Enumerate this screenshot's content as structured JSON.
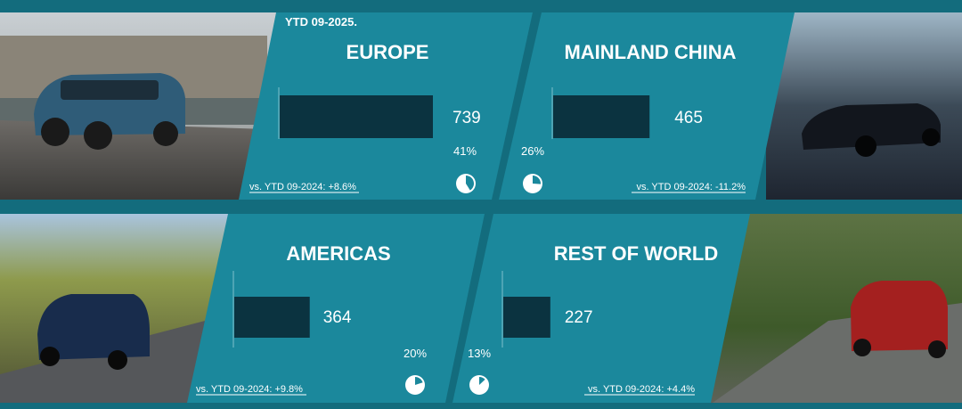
{
  "header": "YTD 09-2025.",
  "footnote": "",
  "colors": {
    "background": "#136c7d",
    "panel": "#1b889c",
    "bar": "#0b3340",
    "text": "#ffffff"
  },
  "chart_data": {
    "type": "bar",
    "title": "",
    "xlabel": "",
    "ylabel": "",
    "xlim": [
      0,
      800
    ],
    "categories": [
      "EUROPE",
      "MAINLAND CHINA",
      "AMERICAS",
      "REST OF WORLD"
    ],
    "values": [
      739,
      465,
      364,
      227
    ],
    "shares": [
      "41%",
      "26%",
      "20%",
      "13%"
    ],
    "share_values": [
      41,
      26,
      20,
      13
    ],
    "comparisons": [
      "vs. YTD 09-2024: +8.6%",
      "vs. YTD 09-2024: -11.2%",
      "vs. YTD 09-2024: +9.8%",
      "vs. YTD 09-2024: +4.4%"
    ]
  }
}
